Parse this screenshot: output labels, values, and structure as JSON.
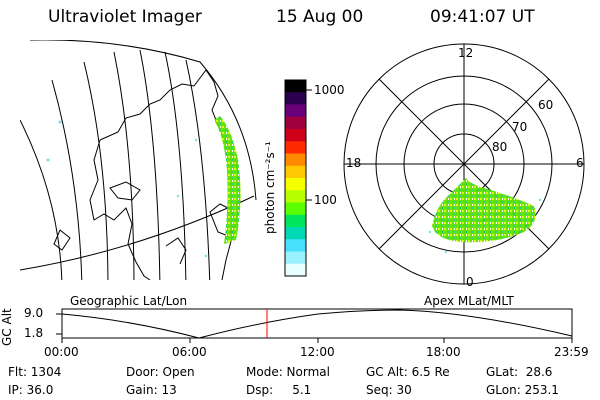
{
  "header": {
    "instrument": "Ultraviolet Imager",
    "date": "15 Aug 00",
    "time": "09:41:07 UT"
  },
  "colorbar": {
    "unit_label": "photon cm⁻²s⁻¹",
    "ticks": [
      "1000",
      "100"
    ],
    "colors": [
      "#000000",
      "#2a004f",
      "#6a0079",
      "#a1003f",
      "#d0001a",
      "#ff2a00",
      "#ff8a00",
      "#ffc800",
      "#f6ff00",
      "#b8ff00",
      "#5bff00",
      "#00e65c",
      "#00d9b4",
      "#48e0ff",
      "#9af2ff",
      "#e8ffff"
    ]
  },
  "geo_panel": {
    "label": "Geographic Lat/Lon"
  },
  "polar_panel": {
    "label": "Apex MLat/MLT",
    "mlt_labels": {
      "top": "12",
      "left": "18",
      "right": "6",
      "bottom": "0"
    },
    "lat_labels": [
      "60",
      "70",
      "80"
    ]
  },
  "timeline": {
    "ylabel": "GC Alt",
    "yticks": [
      "9.0",
      "1.8"
    ],
    "xticks": [
      "00:00",
      "06:00",
      "12:00",
      "18:00",
      "23:59"
    ],
    "marker_color": "#ff0000"
  },
  "info": {
    "flt": "Flt: 1304",
    "ip": "IP: 36.0",
    "door": "Door: Open",
    "gain": "Gain: 13",
    "mode": "Mode: Normal",
    "dsp": "Dsp:     5.1",
    "gcalt": "GC Alt: 6.5 Re",
    "seq": "Seq: 30",
    "glat": "GLat:  28.6",
    "glon": "GLon: 253.1"
  }
}
